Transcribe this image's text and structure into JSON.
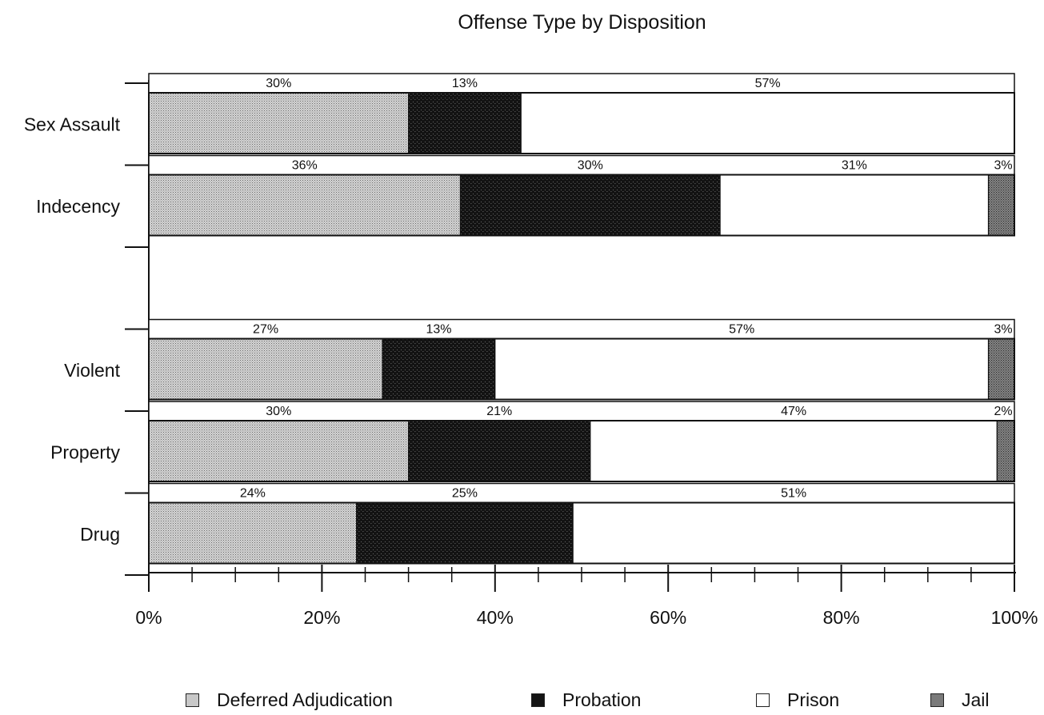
{
  "chart_data": {
    "type": "bar",
    "orientation": "horizontal",
    "stacked": true,
    "title": "Offense Type by Disposition",
    "categories": [
      "Sex Assault",
      "Indecency",
      "",
      "Violent",
      "Property",
      "Drug"
    ],
    "series": [
      {
        "name": "Deferred Adjudication",
        "color": "#bdbdbd",
        "values": [
          30,
          36,
          null,
          27,
          30,
          24
        ]
      },
      {
        "name": "Probation",
        "color": "#141414",
        "values": [
          13,
          30,
          null,
          13,
          21,
          25
        ]
      },
      {
        "name": "Prison",
        "color": "#ffffff",
        "values": [
          57,
          31,
          null,
          57,
          47,
          51
        ]
      },
      {
        "name": "Jail",
        "color": "#7a7a7a",
        "values": [
          0,
          3,
          null,
          3,
          2,
          0
        ]
      }
    ],
    "value_labels": [
      [
        "30%",
        "13%",
        "57%",
        ""
      ],
      [
        "36%",
        "30%",
        "31%",
        "3%"
      ],
      [
        "",
        "",
        "",
        ""
      ],
      [
        "27%",
        "13%",
        "57%",
        "3%"
      ],
      [
        "30%",
        "21%",
        "47%",
        "2%"
      ],
      [
        "24%",
        "25%",
        "51%",
        ""
      ]
    ],
    "xticks": [
      "0%",
      "20%",
      "40%",
      "60%",
      "80%",
      "100%"
    ],
    "xlim": [
      0,
      100
    ],
    "legend_position": "bottom"
  }
}
